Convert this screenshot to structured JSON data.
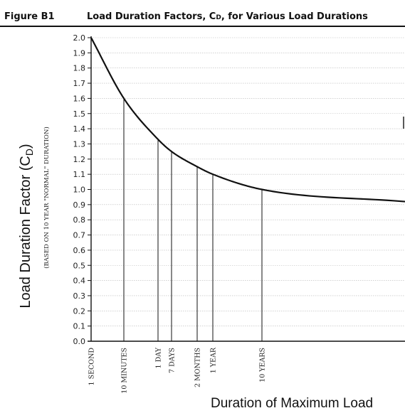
{
  "figure": {
    "label": "Figure B1",
    "title": "Load Duration Factors, C",
    "title_sub": "D",
    "title_rest": ", for Various Load Durations"
  },
  "chart_data": {
    "type": "line",
    "ylabel": "Load Duration Factor (C",
    "ylabel_sub": "D",
    "ylabel_close": ")",
    "ylabel_note": "(BASED ON 10 YEAR \"NORMAL\" DURATION)",
    "xlabel": "Duration of Maximum Load",
    "ylim": [
      0,
      2.0
    ],
    "yticks": [
      "0.0",
      "0.1",
      "0.2",
      "0.3",
      "0.4",
      "0.5",
      "0.6",
      "0.7",
      "0.8",
      "0.9",
      "1.0",
      "1.1",
      "1.2",
      "1.3",
      "1.4",
      "1.5",
      "1.6",
      "1.7",
      "1.8",
      "1.9",
      "2.0"
    ],
    "x_scale": "log",
    "grid": true,
    "series": [
      {
        "points": [
          {
            "seconds": 1,
            "value": 2.0
          },
          {
            "seconds": 600,
            "value": 1.6
          },
          {
            "seconds": 86400,
            "value": 1.33
          },
          {
            "seconds": 604800,
            "value": 1.25
          },
          {
            "seconds": 5184000,
            "value": 1.15
          },
          {
            "seconds": 31536000,
            "value": 1.1
          },
          {
            "seconds": 315360000,
            "value": 1.0
          },
          {
            "seconds": 3000000000,
            "value": 0.92
          }
        ]
      }
    ],
    "durations": [
      {
        "label": "1 SECOND",
        "seconds": 1,
        "value": 2.0
      },
      {
        "label": "10 MINUTES",
        "seconds": 600,
        "value": 1.6
      },
      {
        "label": "1 DAY",
        "seconds": 86400,
        "value": 1.33
      },
      {
        "label": "7 DAYS",
        "seconds": 604800,
        "value": 1.25
      },
      {
        "label": "2 MONTHS",
        "seconds": 5184000,
        "value": 1.15
      },
      {
        "label": "1 YEAR",
        "seconds": 31536000,
        "value": 1.1
      },
      {
        "label": "10 YEARS",
        "seconds": 315360000,
        "value": 1.0
      }
    ]
  }
}
